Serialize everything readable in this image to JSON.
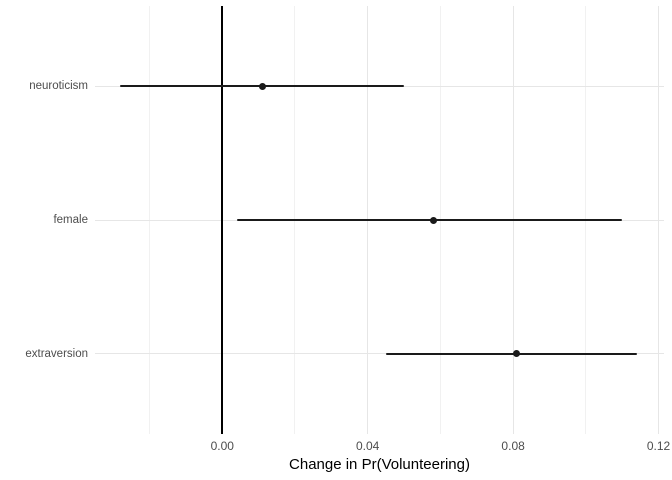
{
  "chart_data": {
    "type": "scatter",
    "subtype": "dot-whisker-coefficient-plot",
    "orientation": "horizontal",
    "title": "",
    "xlabel": "Change in Pr(Volunteering)",
    "ylabel": "",
    "categories": [
      "neuroticism",
      "female",
      "extraversion"
    ],
    "series": [
      {
        "name": "estimate",
        "values": [
          0.011,
          0.058,
          0.081
        ]
      }
    ],
    "ci_low": [
      -0.028,
      0.004,
      0.045
    ],
    "ci_high": [
      0.05,
      0.11,
      0.114
    ],
    "xlim": [
      -0.035,
      0.1215
    ],
    "x_major_ticks": [
      0.0,
      0.04,
      0.08,
      0.12
    ],
    "x_major_tick_labels": [
      "0.00",
      "0.04",
      "0.08",
      "0.12"
    ],
    "x_minor_ticks": [
      -0.02,
      0.02,
      0.06,
      0.1
    ],
    "reference_line_x": 0,
    "grid": true,
    "legend": "none",
    "colors": {
      "background": "#ffffff",
      "grid_major": "#e6e6e6",
      "grid_minor": "#f1f1f1",
      "data": "#1a1a1a",
      "reference_line": "#000000",
      "tick_label_text": "#4d4d4d",
      "category_label_text": "#4d4d4d",
      "axis_title_text": "#000000"
    }
  }
}
